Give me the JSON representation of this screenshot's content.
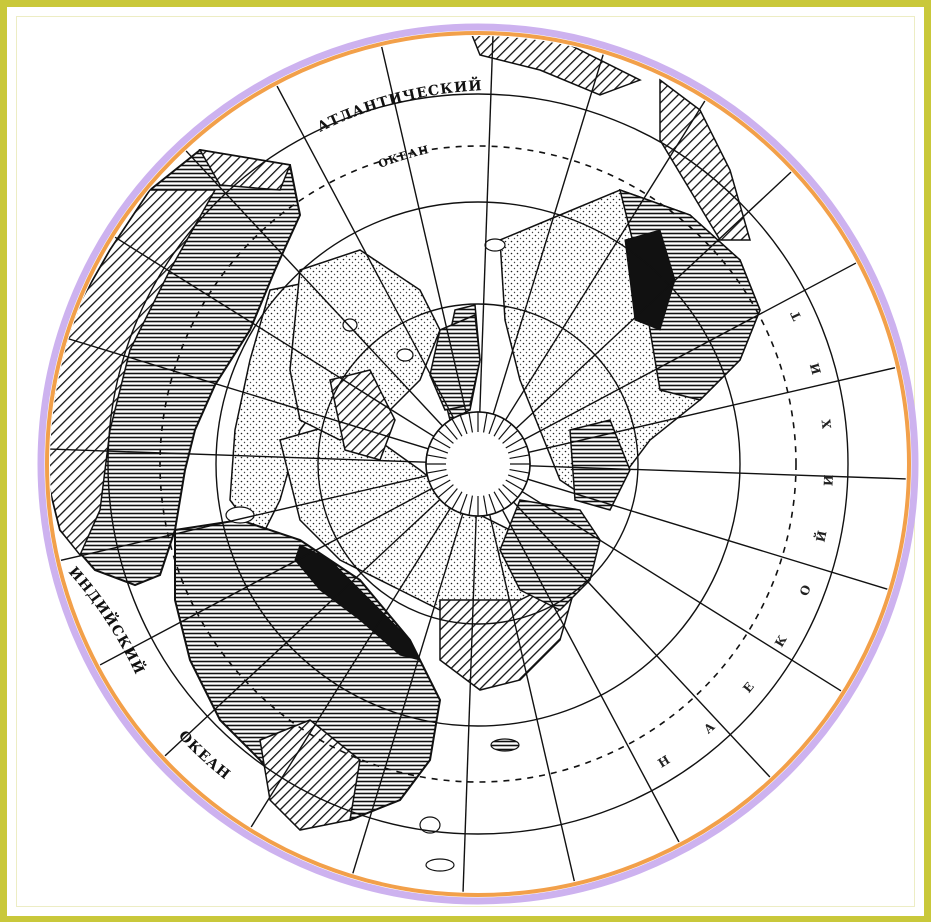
{
  "map": {
    "labels": {
      "atlantic_top": "АТЛАНТИЧЕСКИЙ",
      "atlantic_bottom": "ОКЕАН",
      "indian_top": "ИНДИЙСКИЙ",
      "indian_bottom": "ОКЕАН",
      "pacific_letters": [
        "Т",
        "И",
        "Х",
        "И",
        "Й",
        "О",
        "К",
        "Е",
        "А",
        "Н"
      ]
    },
    "colors": {
      "frame": "#c9c83a",
      "ring_outer": "#cdb2ef",
      "ring_inner": "#f2a04a",
      "ink": "#111111"
    },
    "icons": {
      "hatch": "diagonal-hatch",
      "lines": "horizontal-lines",
      "dots": "stipple-dots"
    }
  }
}
